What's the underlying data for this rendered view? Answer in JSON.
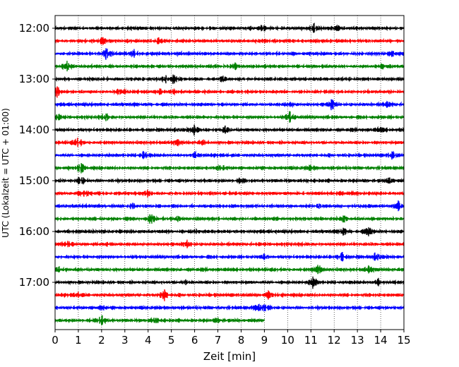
{
  "chart_data": {
    "type": "line",
    "title": "",
    "xlabel": "Zeit  [min]",
    "ylabel": "UTC (Lokalzeit = UTC + 01:00)",
    "xlim": [
      0,
      15
    ],
    "x_ticks": [
      0,
      1,
      2,
      3,
      4,
      5,
      6,
      7,
      8,
      9,
      10,
      11,
      12,
      13,
      14,
      15
    ],
    "x_tick_labels": [
      "0",
      "1",
      "2",
      "3",
      "4",
      "5",
      "6",
      "7",
      "8",
      "9",
      "10",
      "11",
      "12",
      "13",
      "14",
      "15"
    ],
    "y_ticks": [
      "12:00",
      "13:00",
      "14:00",
      "15:00",
      "16:00",
      "17:00"
    ],
    "trace_interval_min": 15,
    "grid": "vertical dotted",
    "trace_colors": [
      "#000000",
      "#ff0000",
      "#0000ff",
      "#008000"
    ],
    "series": [
      {
        "start": "12:00",
        "end_min": 15,
        "events_min": [
          11.1,
          12.1,
          8.9
        ]
      },
      {
        "start": "12:15",
        "end_min": 15,
        "events_min": [
          2.1,
          11.9,
          4.4
        ]
      },
      {
        "start": "12:30",
        "end_min": 15,
        "events_min": [
          2.2,
          3.4,
          14.5
        ]
      },
      {
        "start": "12:45",
        "end_min": 15,
        "events_min": [
          0.5,
          7.7,
          14.1
        ]
      },
      {
        "start": "13:00",
        "end_min": 15,
        "events_min": [
          5.1,
          4.8,
          7.2
        ]
      },
      {
        "start": "13:15",
        "end_min": 15,
        "events_min": [
          0.1,
          2.8,
          4.5,
          5.1
        ]
      },
      {
        "start": "13:30",
        "end_min": 15,
        "events_min": [
          11.9,
          14.3,
          10.1
        ]
      },
      {
        "start": "13:45",
        "end_min": 15,
        "events_min": [
          10.1,
          2.2,
          0.1
        ]
      },
      {
        "start": "14:00",
        "end_min": 15,
        "events_min": [
          6.0,
          7.3,
          14.0
        ]
      },
      {
        "start": "14:15",
        "end_min": 15,
        "events_min": [
          1.0,
          5.3,
          6.4
        ]
      },
      {
        "start": "14:30",
        "end_min": 15,
        "events_min": [
          3.8,
          14.5,
          6.0
        ]
      },
      {
        "start": "14:45",
        "end_min": 15,
        "events_min": [
          1.1,
          7.1,
          11.0
        ]
      },
      {
        "start": "15:00",
        "end_min": 15,
        "events_min": [
          1.1,
          14.4,
          8.0
        ]
      },
      {
        "start": "15:15",
        "end_min": 15,
        "events_min": [
          1.3,
          4.0,
          12.2
        ]
      },
      {
        "start": "15:30",
        "end_min": 15,
        "events_min": [
          14.8,
          3.3,
          11.4
        ]
      },
      {
        "start": "15:45",
        "end_min": 15,
        "events_min": [
          4.1,
          12.4,
          5.3
        ]
      },
      {
        "start": "16:00",
        "end_min": 15,
        "events_min": [
          13.5,
          12.4,
          6.0
        ]
      },
      {
        "start": "16:15",
        "end_min": 15,
        "events_min": [
          0.5,
          5.7,
          2.3
        ]
      },
      {
        "start": "16:30",
        "end_min": 15,
        "events_min": [
          12.3,
          13.8,
          9.0
        ]
      },
      {
        "start": "16:45",
        "end_min": 15,
        "events_min": [
          11.3,
          13.5,
          0.2
        ]
      },
      {
        "start": "17:00",
        "end_min": 15,
        "events_min": [
          11.1,
          13.9,
          5.6
        ]
      },
      {
        "start": "17:15",
        "end_min": 15,
        "events_min": [
          4.7,
          9.2,
          1.0
        ]
      },
      {
        "start": "17:30",
        "end_min": 15,
        "events_min": [
          9.1,
          8.7,
          2.0
        ]
      },
      {
        "start": "17:45",
        "end_min": 9.0,
        "events_min": [
          2.0,
          4.3,
          7.0
        ]
      }
    ]
  }
}
